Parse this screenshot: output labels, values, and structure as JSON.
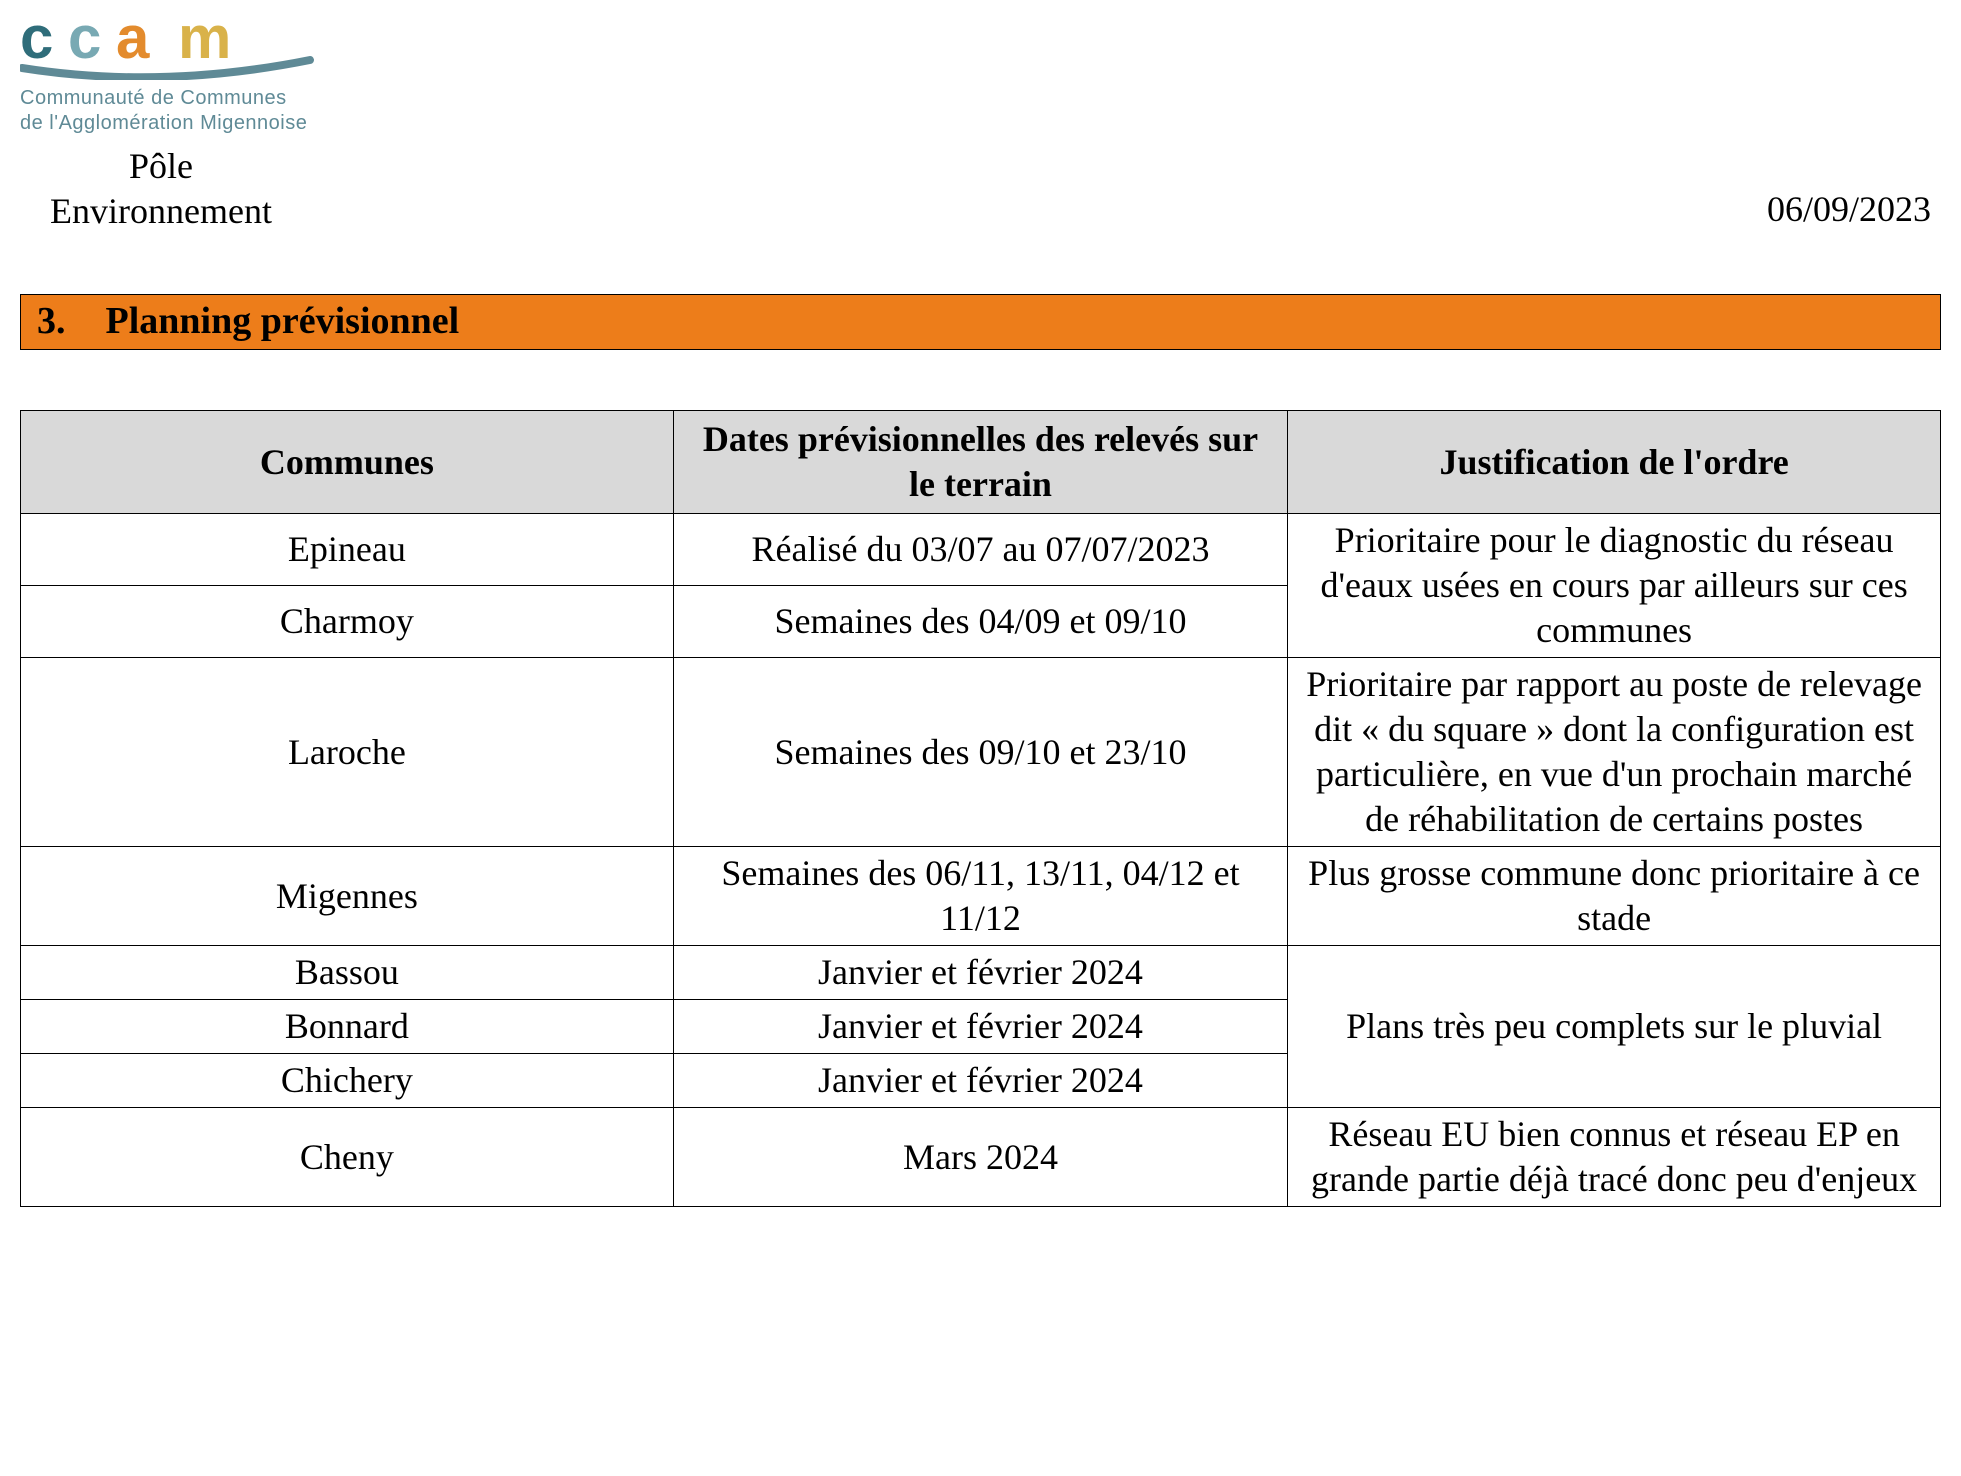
{
  "header": {
    "logo_sub1": "Communauté de Communes",
    "logo_sub2": "de l'Agglomération Migennoise",
    "pole_line1": "Pôle",
    "pole_line2": "Environnement",
    "date": "06/09/2023",
    "logo_colors": {
      "c1_dark": "#2f6d7a",
      "c1_mid": "#78a9b3",
      "a_orange": "#e38b2d",
      "m_yellow": "#d9b24a",
      "swoosh": "#5f8a96",
      "subtext": "#5f8a96"
    }
  },
  "section": {
    "number": "3.",
    "title": "Planning prévisionnel",
    "bg_color": "#ed7d1a"
  },
  "table": {
    "header_bg": "#d9d9d9",
    "columns": [
      "Communes",
      "Dates prévisionnelles des relevés sur le terrain",
      "Justification de l'ordre"
    ],
    "rows": [
      {
        "commune": "Epineau",
        "dates": "Réalisé du 03/07 au 07/07/2023",
        "just": "Prioritaire pour le diagnostic du réseau d'eaux usées en cours par ailleurs sur ces communes",
        "just_rowspan": 2
      },
      {
        "commune": "Charmoy",
        "dates": "Semaines des 04/09 et 09/10"
      },
      {
        "commune": "Laroche",
        "dates": "Semaines des 09/10 et 23/10",
        "just": "Prioritaire par rapport au poste de relevage dit « du square » dont la configuration est particulière, en vue d'un prochain marché de réhabilitation de certains postes",
        "just_rowspan": 1
      },
      {
        "commune": "Migennes",
        "dates": "Semaines des 06/11, 13/11, 04/12 et 11/12",
        "just": "Plus grosse commune donc prioritaire à ce stade",
        "just_rowspan": 1
      },
      {
        "commune": "Bassou",
        "dates": "Janvier et février 2024",
        "just": "Plans très peu complets sur le pluvial",
        "just_rowspan": 3
      },
      {
        "commune": "Bonnard",
        "dates": "Janvier et février 2024"
      },
      {
        "commune": "Chichery",
        "dates": "Janvier et février 2024"
      },
      {
        "commune": "Cheny",
        "dates": "Mars 2024",
        "just": "Réseau EU bien connus et réseau EP en grande partie déjà tracé donc peu d'enjeux",
        "just_rowspan": 1
      }
    ]
  }
}
